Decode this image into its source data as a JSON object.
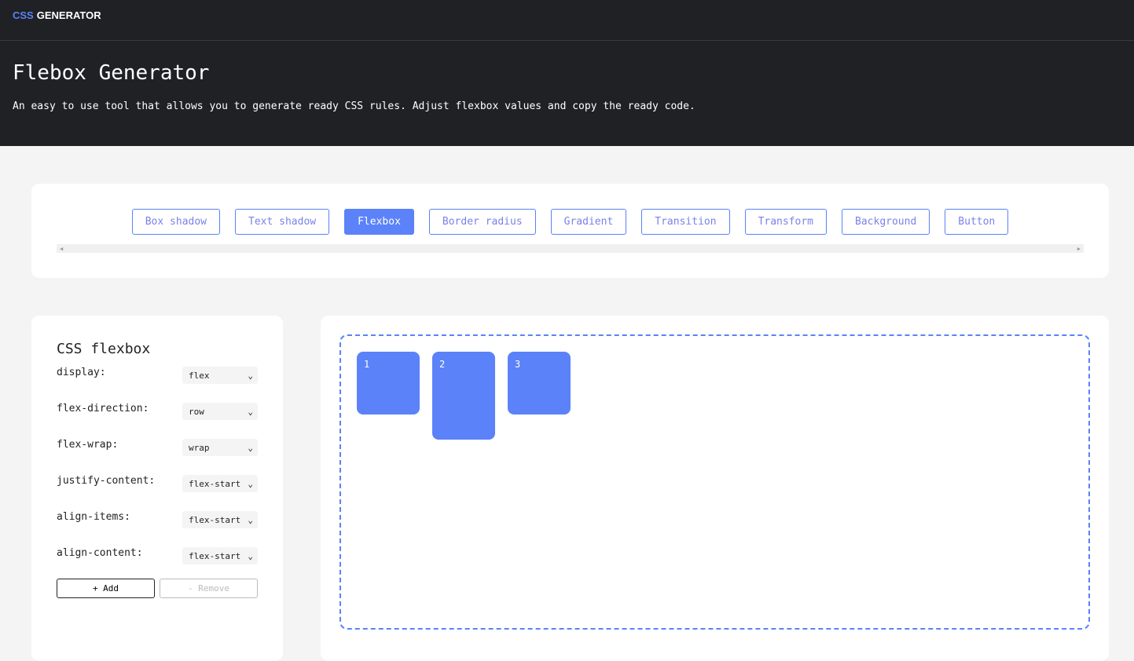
{
  "brand": {
    "accent": "CSS",
    "rest": "GENERATOR"
  },
  "hero": {
    "title": "Flebox Generator",
    "subtitle": "An easy to use tool that allows you to generate ready CSS rules. Adjust flexbox values and copy the ready code."
  },
  "tabs": [
    {
      "label": "Box shadow"
    },
    {
      "label": "Text shadow"
    },
    {
      "label": "Flexbox",
      "active": true
    },
    {
      "label": "Border radius"
    },
    {
      "label": "Gradient"
    },
    {
      "label": "Transition"
    },
    {
      "label": "Transform"
    },
    {
      "label": "Background"
    },
    {
      "label": "Button"
    }
  ],
  "panel": {
    "title": "CSS flexbox",
    "props": [
      {
        "label": "display:",
        "value": "flex"
      },
      {
        "label": "flex-direction:",
        "value": "row"
      },
      {
        "label": "flex-wrap:",
        "value": "wrap"
      },
      {
        "label": "justify-content:",
        "value": "flex-start"
      },
      {
        "label": "align-items:",
        "value": "flex-start"
      },
      {
        "label": "align-content:",
        "value": "flex-start"
      }
    ],
    "add": "+ Add",
    "remove": "- Remove"
  },
  "preview": {
    "items": [
      "1",
      "2",
      "3"
    ]
  },
  "colors": {
    "accent": "#5b82f8",
    "dark": "#202125"
  }
}
